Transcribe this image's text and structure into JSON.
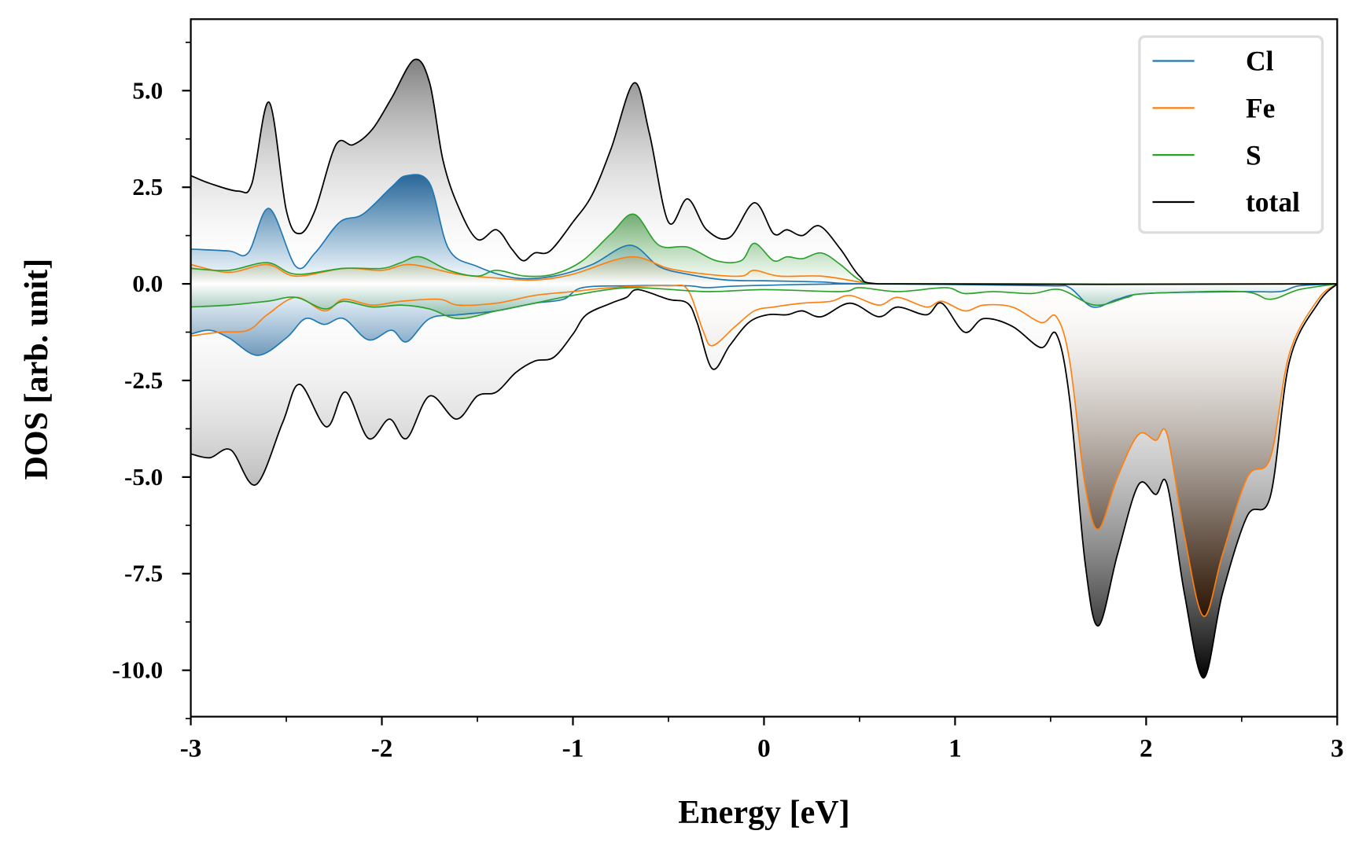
{
  "chart_data": {
    "type": "area",
    "title": "",
    "xlabel": "Energy [eV]",
    "ylabel": "DOS [arb. unit]",
    "xlim": [
      -3,
      3
    ],
    "ylim": [
      -11.2,
      6.85
    ],
    "grid": false,
    "legend_position": "top-right",
    "x_ticks": [
      -3,
      -2,
      -1,
      0,
      1,
      2,
      3
    ],
    "x_tick_labels": [
      "-3",
      "-2",
      "-1",
      "0",
      "1",
      "2",
      "3"
    ],
    "y_ticks": [
      5,
      2.5,
      0,
      -2.5,
      -5,
      -7.5,
      -10
    ],
    "y_tick_labels": [
      "5.0",
      "2.5",
      "0.0",
      "-2.5",
      "-5.0",
      "-7.5",
      "-10.0"
    ],
    "series": [
      {
        "name": "total",
        "color": "#000000",
        "up": [
          [
            -3,
            2.8
          ],
          [
            -2.9,
            2.6
          ],
          [
            -2.75,
            2.4
          ],
          [
            -2.68,
            2.6
          ],
          [
            -2.59,
            4.7
          ],
          [
            -2.5,
            1.9
          ],
          [
            -2.43,
            1.3
          ],
          [
            -2.35,
            1.9
          ],
          [
            -2.24,
            3.6
          ],
          [
            -2.15,
            3.6
          ],
          [
            -2.05,
            4.0
          ],
          [
            -1.95,
            4.8
          ],
          [
            -1.83,
            5.8
          ],
          [
            -1.75,
            5.2
          ],
          [
            -1.68,
            3.2
          ],
          [
            -1.6,
            2.0
          ],
          [
            -1.5,
            1.15
          ],
          [
            -1.4,
            1.4
          ],
          [
            -1.32,
            0.9
          ],
          [
            -1.26,
            0.6
          ],
          [
            -1.2,
            0.8
          ],
          [
            -1.12,
            0.85
          ],
          [
            -1.0,
            1.6
          ],
          [
            -0.9,
            2.3
          ],
          [
            -0.8,
            3.5
          ],
          [
            -0.68,
            5.2
          ],
          [
            -0.6,
            3.9
          ],
          [
            -0.5,
            1.6
          ],
          [
            -0.4,
            2.2
          ],
          [
            -0.3,
            1.4
          ],
          [
            -0.18,
            1.2
          ],
          [
            -0.05,
            2.1
          ],
          [
            0.05,
            1.3
          ],
          [
            0.12,
            1.4
          ],
          [
            0.2,
            1.25
          ],
          [
            0.29,
            1.5
          ],
          [
            0.4,
            0.9
          ],
          [
            0.5,
            0.2
          ],
          [
            0.6,
            0.0
          ],
          [
            3,
            0
          ]
        ],
        "down": [
          [
            -3,
            -4.4
          ],
          [
            -2.9,
            -4.5
          ],
          [
            -2.79,
            -4.3
          ],
          [
            -2.66,
            -5.2
          ],
          [
            -2.52,
            -3.6
          ],
          [
            -2.43,
            -2.6
          ],
          [
            -2.29,
            -3.7
          ],
          [
            -2.19,
            -2.8
          ],
          [
            -2.07,
            -4.0
          ],
          [
            -1.96,
            -3.5
          ],
          [
            -1.87,
            -4.0
          ],
          [
            -1.75,
            -2.9
          ],
          [
            -1.61,
            -3.5
          ],
          [
            -1.5,
            -2.9
          ],
          [
            -1.4,
            -2.8
          ],
          [
            -1.3,
            -2.3
          ],
          [
            -1.2,
            -2.0
          ],
          [
            -1.1,
            -1.9
          ],
          [
            -1.0,
            -1.3
          ],
          [
            -0.93,
            -0.8
          ],
          [
            -0.8,
            -0.5
          ],
          [
            -0.72,
            -0.35
          ],
          [
            -0.66,
            -0.15
          ],
          [
            -0.5,
            -0.4
          ],
          [
            -0.4,
            -0.5
          ],
          [
            -0.35,
            -1.0
          ],
          [
            -0.27,
            -2.2
          ],
          [
            -0.18,
            -1.6
          ],
          [
            -0.08,
            -1.0
          ],
          [
            0.02,
            -0.8
          ],
          [
            0.12,
            -0.8
          ],
          [
            0.2,
            -0.7
          ],
          [
            0.3,
            -0.85
          ],
          [
            0.45,
            -0.5
          ],
          [
            0.6,
            -0.85
          ],
          [
            0.7,
            -0.6
          ],
          [
            0.85,
            -0.8
          ],
          [
            0.93,
            -0.5
          ],
          [
            1.05,
            -1.25
          ],
          [
            1.15,
            -0.9
          ],
          [
            1.3,
            -1.1
          ],
          [
            1.45,
            -1.65
          ],
          [
            1.53,
            -1.3
          ],
          [
            1.6,
            -3.0
          ],
          [
            1.68,
            -7.2
          ],
          [
            1.75,
            -8.85
          ],
          [
            1.85,
            -7.0
          ],
          [
            1.96,
            -5.2
          ],
          [
            2.05,
            -5.45
          ],
          [
            2.11,
            -5.2
          ],
          [
            2.2,
            -8.0
          ],
          [
            2.3,
            -10.2
          ],
          [
            2.4,
            -8.0
          ],
          [
            2.53,
            -6.0
          ],
          [
            2.65,
            -5.5
          ],
          [
            2.75,
            -2.0
          ],
          [
            2.9,
            -0.5
          ],
          [
            3,
            0
          ]
        ]
      },
      {
        "name": "Cl",
        "color": "#1f77b4",
        "up": [
          [
            -3,
            0.9
          ],
          [
            -2.8,
            0.85
          ],
          [
            -2.7,
            0.8
          ],
          [
            -2.59,
            1.95
          ],
          [
            -2.45,
            0.45
          ],
          [
            -2.35,
            0.8
          ],
          [
            -2.22,
            1.6
          ],
          [
            -2.1,
            1.8
          ],
          [
            -1.95,
            2.5
          ],
          [
            -1.87,
            2.8
          ],
          [
            -1.75,
            2.6
          ],
          [
            -1.65,
            0.9
          ],
          [
            -1.5,
            0.45
          ],
          [
            -1.3,
            0.15
          ],
          [
            -1.1,
            0.2
          ],
          [
            -0.9,
            0.5
          ],
          [
            -0.7,
            1.0
          ],
          [
            -0.55,
            0.45
          ],
          [
            -0.4,
            0.25
          ],
          [
            -0.2,
            0.1
          ],
          [
            0,
            0.08
          ],
          [
            0.3,
            0.05
          ],
          [
            0.6,
            0.0
          ],
          [
            3,
            0
          ]
        ],
        "down": [
          [
            -3,
            -1.3
          ],
          [
            -2.9,
            -1.2
          ],
          [
            -2.8,
            -1.4
          ],
          [
            -2.65,
            -1.85
          ],
          [
            -2.5,
            -1.4
          ],
          [
            -2.4,
            -0.9
          ],
          [
            -2.3,
            -1.05
          ],
          [
            -2.2,
            -0.9
          ],
          [
            -2.07,
            -1.45
          ],
          [
            -1.95,
            -1.2
          ],
          [
            -1.87,
            -1.5
          ],
          [
            -1.75,
            -0.9
          ],
          [
            -1.6,
            -0.8
          ],
          [
            -1.4,
            -0.7
          ],
          [
            -1.2,
            -0.5
          ],
          [
            -1.05,
            -0.4
          ],
          [
            -0.95,
            -0.1
          ],
          [
            -0.7,
            -0.05
          ],
          [
            -0.4,
            -0.05
          ],
          [
            -0.3,
            -0.1
          ],
          [
            -0.1,
            -0.05
          ],
          [
            0.5,
            0
          ],
          [
            1.5,
            -0.05
          ],
          [
            1.6,
            -0.1
          ],
          [
            1.72,
            -0.6
          ],
          [
            1.85,
            -0.4
          ],
          [
            2.0,
            -0.25
          ],
          [
            2.5,
            -0.2
          ],
          [
            2.7,
            -0.2
          ],
          [
            2.8,
            -0.05
          ],
          [
            3,
            0
          ]
        ]
      },
      {
        "name": "Fe",
        "color": "#ff7f0e",
        "up": [
          [
            -3,
            0.5
          ],
          [
            -2.8,
            0.3
          ],
          [
            -2.6,
            0.5
          ],
          [
            -2.45,
            0.2
          ],
          [
            -2.2,
            0.4
          ],
          [
            -2.0,
            0.35
          ],
          [
            -1.85,
            0.5
          ],
          [
            -1.6,
            0.25
          ],
          [
            -1.4,
            0.15
          ],
          [
            -1.2,
            0.1
          ],
          [
            -1.0,
            0.25
          ],
          [
            -0.7,
            0.7
          ],
          [
            -0.5,
            0.4
          ],
          [
            -0.3,
            0.25
          ],
          [
            -0.12,
            0.2
          ],
          [
            -0.05,
            0.35
          ],
          [
            0.08,
            0.2
          ],
          [
            0.3,
            0.2
          ],
          [
            0.5,
            0.05
          ],
          [
            0.6,
            0
          ],
          [
            3,
            0
          ]
        ],
        "down": [
          [
            -3,
            -1.35
          ],
          [
            -2.85,
            -1.25
          ],
          [
            -2.7,
            -1.2
          ],
          [
            -2.6,
            -0.8
          ],
          [
            -2.45,
            -0.35
          ],
          [
            -2.3,
            -0.7
          ],
          [
            -2.2,
            -0.4
          ],
          [
            -2.05,
            -0.55
          ],
          [
            -1.9,
            -0.45
          ],
          [
            -1.7,
            -0.4
          ],
          [
            -1.6,
            -0.55
          ],
          [
            -1.4,
            -0.5
          ],
          [
            -1.2,
            -0.3
          ],
          [
            -1.0,
            -0.2
          ],
          [
            -0.8,
            -0.1
          ],
          [
            -0.5,
            -0.05
          ],
          [
            -0.4,
            -0.15
          ],
          [
            -0.32,
            -1.2
          ],
          [
            -0.27,
            -1.6
          ],
          [
            -0.15,
            -1.1
          ],
          [
            -0.05,
            -0.7
          ],
          [
            0.05,
            -0.6
          ],
          [
            0.2,
            -0.5
          ],
          [
            0.35,
            -0.45
          ],
          [
            0.45,
            -0.3
          ],
          [
            0.6,
            -0.55
          ],
          [
            0.7,
            -0.35
          ],
          [
            0.85,
            -0.6
          ],
          [
            0.93,
            -0.45
          ],
          [
            1.05,
            -0.7
          ],
          [
            1.15,
            -0.55
          ],
          [
            1.3,
            -0.6
          ],
          [
            1.45,
            -1.0
          ],
          [
            1.53,
            -0.85
          ],
          [
            1.6,
            -2.0
          ],
          [
            1.68,
            -5.2
          ],
          [
            1.75,
            -6.35
          ],
          [
            1.85,
            -5.0
          ],
          [
            1.96,
            -3.9
          ],
          [
            2.05,
            -4.05
          ],
          [
            2.11,
            -3.9
          ],
          [
            2.2,
            -6.5
          ],
          [
            2.3,
            -8.6
          ],
          [
            2.4,
            -7.0
          ],
          [
            2.53,
            -5.0
          ],
          [
            2.65,
            -4.5
          ],
          [
            2.75,
            -1.8
          ],
          [
            2.9,
            -0.4
          ],
          [
            3,
            0
          ]
        ]
      },
      {
        "name": "S",
        "color": "#2ca02c",
        "up": [
          [
            -3,
            0.4
          ],
          [
            -2.8,
            0.35
          ],
          [
            -2.6,
            0.55
          ],
          [
            -2.45,
            0.25
          ],
          [
            -2.2,
            0.4
          ],
          [
            -2.0,
            0.4
          ],
          [
            -1.9,
            0.55
          ],
          [
            -1.8,
            0.7
          ],
          [
            -1.65,
            0.35
          ],
          [
            -1.5,
            0.2
          ],
          [
            -1.4,
            0.35
          ],
          [
            -1.25,
            0.2
          ],
          [
            -1.1,
            0.25
          ],
          [
            -0.95,
            0.6
          ],
          [
            -0.8,
            1.3
          ],
          [
            -0.68,
            1.8
          ],
          [
            -0.55,
            1.0
          ],
          [
            -0.4,
            0.95
          ],
          [
            -0.25,
            0.6
          ],
          [
            -0.12,
            0.6
          ],
          [
            -0.05,
            1.05
          ],
          [
            0.05,
            0.6
          ],
          [
            0.12,
            0.7
          ],
          [
            0.2,
            0.65
          ],
          [
            0.3,
            0.8
          ],
          [
            0.4,
            0.5
          ],
          [
            0.5,
            0.1
          ],
          [
            0.6,
            0
          ],
          [
            3,
            0
          ]
        ],
        "down": [
          [
            -3,
            -0.6
          ],
          [
            -2.8,
            -0.55
          ],
          [
            -2.6,
            -0.45
          ],
          [
            -2.45,
            -0.35
          ],
          [
            -2.3,
            -0.65
          ],
          [
            -2.2,
            -0.45
          ],
          [
            -2.05,
            -0.6
          ],
          [
            -1.9,
            -0.55
          ],
          [
            -1.75,
            -0.65
          ],
          [
            -1.6,
            -0.9
          ],
          [
            -1.4,
            -0.7
          ],
          [
            -1.2,
            -0.5
          ],
          [
            -1.0,
            -0.3
          ],
          [
            -0.7,
            -0.1
          ],
          [
            -0.3,
            -0.2
          ],
          [
            0,
            -0.15
          ],
          [
            0.4,
            -0.2
          ],
          [
            0.5,
            -0.1
          ],
          [
            0.7,
            -0.2
          ],
          [
            0.95,
            -0.1
          ],
          [
            1.05,
            -0.25
          ],
          [
            1.2,
            -0.2
          ],
          [
            1.4,
            -0.25
          ],
          [
            1.55,
            -0.15
          ],
          [
            1.73,
            -0.55
          ],
          [
            1.9,
            -0.35
          ],
          [
            2.0,
            -0.25
          ],
          [
            2.5,
            -0.2
          ],
          [
            2.65,
            -0.4
          ],
          [
            2.8,
            -0.15
          ],
          [
            3,
            0
          ]
        ]
      }
    ],
    "legend": [
      "Cl",
      "Fe",
      "S",
      "total"
    ]
  }
}
